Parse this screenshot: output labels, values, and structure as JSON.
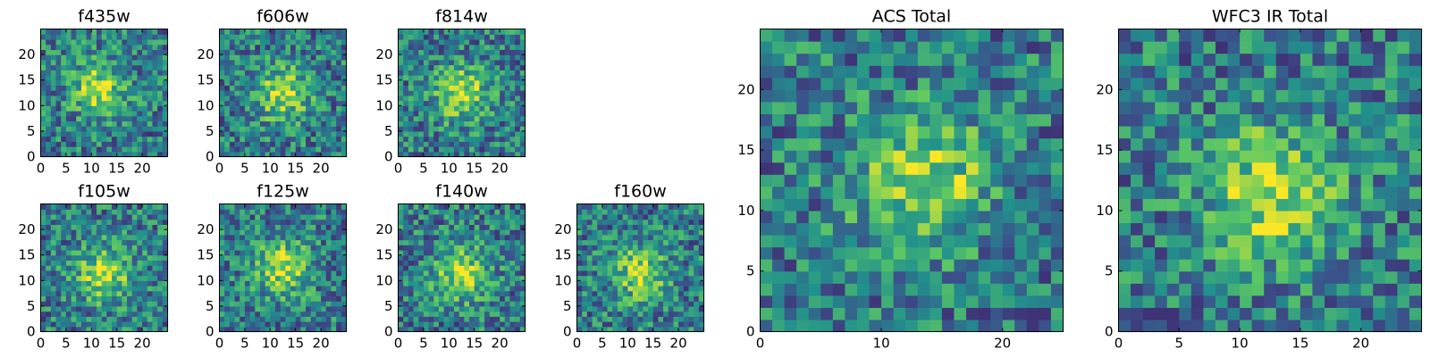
{
  "chart_data": {
    "type": "heatmap",
    "colormap": [
      "#440154",
      "#3b528b",
      "#21918c",
      "#5ec962",
      "#fde725"
    ],
    "grid_size": 25,
    "panels": [
      {
        "key": "f435w",
        "title": "f435w",
        "extent": [
          0,
          25
        ],
        "xticks": [
          0,
          5,
          10,
          15,
          20
        ],
        "yticks": [
          0,
          5,
          10,
          15,
          20
        ],
        "center": [
          11,
          13
        ],
        "seed": 11
      },
      {
        "key": "f606w",
        "title": "f606w",
        "extent": [
          0,
          25
        ],
        "xticks": [
          0,
          5,
          10,
          15,
          20
        ],
        "yticks": [
          0,
          5,
          10,
          15,
          20
        ],
        "center": [
          12,
          12
        ],
        "seed": 23
      },
      {
        "key": "f814w",
        "title": "f814w",
        "extent": [
          0,
          25
        ],
        "xticks": [
          0,
          5,
          10,
          15,
          20
        ],
        "yticks": [
          0,
          5,
          10,
          15,
          20
        ],
        "center": [
          12,
          12
        ],
        "seed": 37
      },
      {
        "key": "f105w",
        "title": "f105w",
        "extent": [
          0,
          25
        ],
        "xticks": [
          0,
          5,
          10,
          15,
          20
        ],
        "yticks": [
          0,
          5,
          10,
          15,
          20
        ],
        "center": [
          12,
          11
        ],
        "seed": 41
      },
      {
        "key": "f125w",
        "title": "f125w",
        "extent": [
          0,
          25
        ],
        "xticks": [
          0,
          5,
          10,
          15,
          20
        ],
        "yticks": [
          0,
          5,
          10,
          15,
          20
        ],
        "center": [
          12,
          12
        ],
        "seed": 53
      },
      {
        "key": "f140w",
        "title": "f140w",
        "extent": [
          0,
          25
        ],
        "xticks": [
          0,
          5,
          10,
          15,
          20
        ],
        "yticks": [
          0,
          5,
          10,
          15,
          20
        ],
        "center": [
          12,
          11
        ],
        "seed": 67
      },
      {
        "key": "f160w",
        "title": "f160w",
        "extent": [
          0,
          25
        ],
        "xticks": [
          0,
          5,
          10,
          15,
          20
        ],
        "yticks": [
          0,
          5,
          10,
          15,
          20
        ],
        "center": [
          12,
          11
        ],
        "seed": 71
      },
      {
        "key": "acs_total",
        "title": "ACS Total",
        "extent": [
          0,
          25
        ],
        "xticks": [
          0,
          10,
          20
        ],
        "yticks": [
          0,
          5,
          10,
          15,
          20
        ],
        "center": [
          13,
          12
        ],
        "seed": 83
      },
      {
        "key": "wfc3_total",
        "title": "WFC3 IR Total",
        "extent": [
          0,
          25
        ],
        "xticks": [
          0,
          5,
          10,
          15,
          20
        ],
        "yticks": [
          0,
          5,
          10,
          15,
          20
        ],
        "center": [
          12,
          11
        ],
        "seed": 97
      }
    ]
  }
}
